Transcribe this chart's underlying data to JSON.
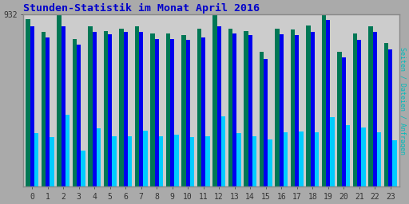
{
  "title": "Stunden-Statistik im Monat April 2016",
  "ylabel": "Seiten / Dateien / Anfragen",
  "hours": [
    0,
    1,
    2,
    3,
    4,
    5,
    6,
    7,
    8,
    9,
    10,
    11,
    12,
    13,
    14,
    15,
    16,
    17,
    18,
    19,
    20,
    21,
    22,
    23
  ],
  "seiten": [
    870,
    810,
    870,
    770,
    840,
    825,
    840,
    840,
    800,
    800,
    795,
    810,
    870,
    830,
    820,
    690,
    825,
    820,
    840,
    905,
    700,
    795,
    840,
    745
  ],
  "dateien": [
    910,
    840,
    932,
    800,
    870,
    845,
    855,
    870,
    830,
    830,
    820,
    855,
    928,
    855,
    845,
    730,
    855,
    850,
    875,
    928,
    730,
    830,
    870,
    780
  ],
  "anfragen": [
    290,
    270,
    390,
    195,
    315,
    275,
    275,
    305,
    275,
    280,
    270,
    275,
    380,
    290,
    275,
    255,
    295,
    300,
    295,
    375,
    335,
    320,
    295,
    250
  ],
  "color_seiten": "#0000ee",
  "color_dateien": "#007755",
  "color_anfragen": "#00ccff",
  "ymax": 932,
  "bg_color": "#aaaaaa",
  "plot_bg": "#cccccc",
  "border_color": "#888888",
  "title_color": "#0000cc",
  "ylabel_color": "#00bbbb",
  "bar_width": 0.27
}
